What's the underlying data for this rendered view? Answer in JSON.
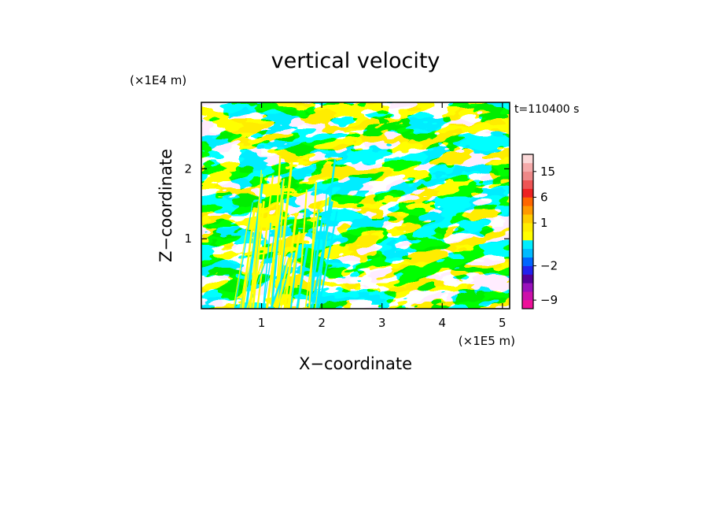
{
  "chart_data": {
    "type": "heatmap",
    "title": "vertical velocity",
    "xlabel": "X−coordinate",
    "ylabel": "Z−coordinate",
    "x_unit": "(×1E5 m)",
    "y_unit": "(×1E4 m)",
    "time_label": "t=110400 s",
    "xlim": [
      0,
      5.12
    ],
    "ylim": [
      0,
      2.95
    ],
    "x_ticks": [
      1,
      2,
      3,
      4,
      5
    ],
    "x_tick_labels": [
      "1",
      "2",
      "3",
      "4",
      "5"
    ],
    "y_ticks": [
      1,
      2
    ],
    "y_tick_labels": [
      "1",
      "2"
    ],
    "field_colors": {
      "positive": "#ffff00",
      "negative": "#00eeff"
    },
    "colorbar": {
      "levels": [
        -12,
        -9,
        -6,
        -4,
        -3,
        -2,
        -1,
        -0.5,
        0,
        0.5,
        1,
        2,
        3,
        6,
        9,
        12,
        15,
        18,
        21
      ],
      "colors": [
        "#ee1199",
        "#cc11aa",
        "#9911bb",
        "#550099",
        "#2222ee",
        "#0066ff",
        "#00bbff",
        "#00eeff",
        "#ffff00",
        "#ffee00",
        "#ffcc00",
        "#ff9900",
        "#ff6600",
        "#ee2222",
        "#ee5555",
        "#ee8888",
        "#f5aaaa",
        "#fbd8d8"
      ],
      "tick_values": [
        15,
        6,
        1,
        -2,
        -9
      ],
      "tick_labels": [
        "15",
        "6",
        "1",
        "−2",
        "−9"
      ]
    }
  }
}
